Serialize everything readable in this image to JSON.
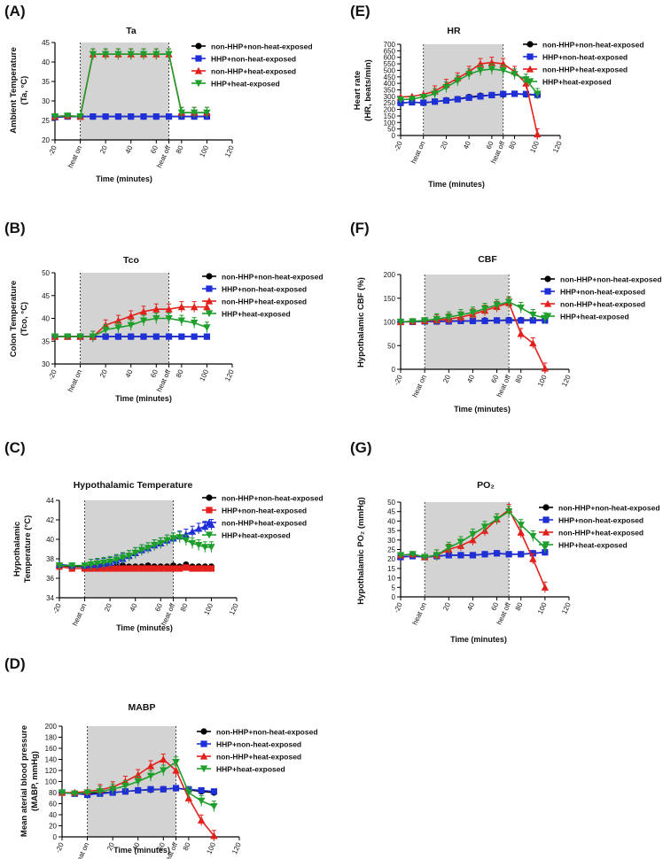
{
  "colors": {
    "black": "#000000",
    "blue": "#1f2fd8",
    "red": "#e3201b",
    "green": "#1e9e2a",
    "shade": "#d3d3d3"
  },
  "chart_data": [
    {
      "panel": "(A)",
      "type": "line",
      "title": "Ta",
      "ylabel_lines": [
        "Ambient Temperature",
        "(Ta, °C)"
      ],
      "xlabel": "Time (minutes)",
      "ylim": [
        20,
        45
      ],
      "yticks": [
        20,
        25,
        30,
        35,
        40,
        45
      ],
      "xlim": [
        -20,
        120
      ],
      "xticks": [
        "-20",
        "heat on",
        "20",
        "40",
        "60",
        "heat off",
        "80",
        "100",
        "120"
      ],
      "x": [
        -20,
        -10,
        0,
        10,
        20,
        30,
        40,
        50,
        60,
        70,
        80,
        90,
        100
      ],
      "series": [
        {
          "name": "non-HHP+non-heat-exposed",
          "marker": "circle",
          "color": "black",
          "values": [
            25.8,
            26,
            26,
            26,
            26,
            26,
            26,
            26,
            26,
            26,
            26,
            26,
            26
          ]
        },
        {
          "name": "HHP+non-heat-exposed",
          "marker": "square",
          "color": "blue",
          "values": [
            25.8,
            26,
            26,
            26,
            26,
            26,
            26,
            26,
            26,
            26,
            26,
            26,
            26
          ]
        },
        {
          "name": "non-HHP+heat-exposed",
          "marker": "triangle",
          "color": "red",
          "values": [
            26,
            26.2,
            26,
            42,
            42,
            42,
            42,
            42,
            42,
            42,
            27,
            27,
            27
          ]
        },
        {
          "name": "HHP+heat-exposed",
          "marker": "triangle-down",
          "color": "green",
          "values": [
            26,
            26.2,
            26,
            42,
            42,
            42,
            42,
            42,
            42,
            42,
            27,
            27,
            27
          ]
        }
      ],
      "annotations": []
    },
    {
      "panel": "(B)",
      "type": "line",
      "title": "Tco",
      "ylabel_lines": [
        "Colon Temperature",
        "(Tco, °C)"
      ],
      "xlabel": "Time (minutes)",
      "ylim": [
        30,
        50
      ],
      "yticks": [
        30,
        35,
        40,
        45,
        50
      ],
      "xlim": [
        -20,
        120
      ],
      "xticks": [
        "-20",
        "heat on",
        "20",
        "40",
        "60",
        "heat off",
        "80",
        "100",
        "120"
      ],
      "x": [
        -20,
        -10,
        0,
        10,
        20,
        30,
        40,
        50,
        60,
        70,
        80,
        90,
        100
      ],
      "series": [
        {
          "name": "non-HHP+non-heat-exposed",
          "marker": "circle",
          "color": "black",
          "values": [
            36,
            36,
            36,
            36,
            36,
            36,
            36,
            36,
            36,
            36,
            36,
            36,
            36
          ]
        },
        {
          "name": "HHP+non-heat-exposed",
          "marker": "square",
          "color": "blue",
          "values": [
            36,
            36,
            36,
            36,
            36,
            36,
            36,
            36,
            36,
            36,
            36,
            36,
            36
          ]
        },
        {
          "name": "non-HHP+heat-exposed",
          "marker": "triangle",
          "color": "red",
          "values": [
            36,
            36,
            36,
            36,
            38.5,
            39.5,
            40.5,
            41.5,
            42,
            42,
            42.5,
            42.5,
            42.5
          ]
        },
        {
          "name": "HHP+heat-exposed",
          "marker": "triangle-down",
          "color": "green",
          "values": [
            36,
            36,
            36,
            36,
            37.5,
            38,
            38.5,
            39.5,
            40,
            40,
            39.5,
            39,
            38
          ]
        }
      ],
      "annotations": []
    },
    {
      "panel": "(C)",
      "type": "line",
      "title": "Hypothalamic Temperature",
      "ylabel_lines": [
        "Hypothalamic",
        "Temperature (°C)"
      ],
      "xlabel": "Time (minutes)",
      "ylim": [
        34,
        44
      ],
      "yticks": [
        34,
        36,
        38,
        40,
        42,
        44
      ],
      "xlim": [
        -20,
        120
      ],
      "xticks": [
        "-20",
        "heat on",
        "20",
        "40",
        "60",
        "heat off",
        "80",
        "100",
        "120"
      ],
      "x": [
        -20,
        -10,
        0,
        5,
        10,
        15,
        20,
        25,
        30,
        35,
        40,
        45,
        50,
        55,
        60,
        65,
        70,
        75,
        80,
        85,
        90,
        95,
        100
      ],
      "series": [
        {
          "name": "non-HHP+non-heat-exposed",
          "marker": "circle",
          "color": "black",
          "values": [
            37.3,
            37.2,
            37.2,
            37.2,
            37.2,
            37.3,
            37.2,
            37.2,
            37.3,
            37.2,
            37.2,
            37.2,
            37.3,
            37.2,
            37.2,
            37.2,
            37.3,
            37.2,
            37.4,
            37.2,
            37.2,
            37.2,
            37.2
          ]
        },
        {
          "name": "HHP+non-heat-exposed",
          "marker": "square",
          "color": "red",
          "values": [
            37.2,
            37,
            37,
            37,
            37,
            37,
            37,
            37,
            37,
            37,
            37,
            37,
            37,
            37,
            37,
            37,
            37,
            37,
            37.1,
            37,
            37,
            37,
            37
          ]
        },
        {
          "name": "non-HHP+heat-exposed",
          "marker": "triangle",
          "color": "blue",
          "values": [
            37.4,
            37.3,
            37.3,
            37.4,
            37.4,
            37.5,
            37.6,
            37.8,
            38,
            38.3,
            38.6,
            38.9,
            39.1,
            39.4,
            39.6,
            39.9,
            40.1,
            40.3,
            40.5,
            40.8,
            41.1,
            41.3,
            41.5
          ]
        },
        {
          "name": "HHP+heat-exposed",
          "marker": "triangle-down",
          "color": "green",
          "values": [
            37.3,
            37.3,
            37.3,
            37.4,
            37.5,
            37.6,
            37.7,
            37.9,
            38.1,
            38.3,
            38.6,
            38.9,
            39.1,
            39.4,
            39.6,
            39.9,
            40.1,
            40.2,
            39.9,
            39.6,
            39.4,
            39.2,
            39.2
          ]
        }
      ],
      "annotations": []
    },
    {
      "panel": "(D)",
      "type": "line",
      "title": "MABP",
      "ylabel_lines": [
        "Mean aterial blood pressure",
        "(MABP, mmHg)"
      ],
      "xlabel": "Time (minutes)",
      "ylim": [
        0,
        200
      ],
      "yticks": [
        0,
        20,
        40,
        60,
        80,
        100,
        120,
        140,
        160,
        180,
        200
      ],
      "xlim": [
        -20,
        120
      ],
      "xticks": [
        "-20",
        "heat on",
        "20",
        "40",
        "60",
        "heat off",
        "80",
        "100",
        "120"
      ],
      "x": [
        -20,
        -10,
        0,
        10,
        20,
        30,
        40,
        50,
        60,
        70,
        80,
        90,
        100
      ],
      "series": [
        {
          "name": "non-HHP+non-heat-exposed",
          "marker": "circle",
          "color": "black",
          "values": [
            80,
            78,
            78,
            80,
            80,
            82,
            84,
            85,
            86,
            88,
            85,
            82,
            80
          ]
        },
        {
          "name": "HHP+non-heat-exposed",
          "marker": "square",
          "color": "blue",
          "values": [
            80,
            78,
            76,
            78,
            80,
            82,
            84,
            86,
            86,
            88,
            86,
            84,
            82
          ]
        },
        {
          "name": "non-HHP+heat-exposed",
          "marker": "triangle",
          "color": "red",
          "values": [
            80,
            80,
            82,
            85,
            90,
            100,
            112,
            128,
            140,
            120,
            70,
            30,
            2
          ]
        },
        {
          "name": "HHP+heat-exposed",
          "marker": "triangle-down",
          "color": "green",
          "values": [
            80,
            78,
            80,
            82,
            86,
            92,
            100,
            110,
            120,
            135,
            80,
            65,
            55
          ]
        }
      ],
      "annotations": []
    },
    {
      "panel": "(E)",
      "type": "line",
      "title": "HR",
      "ylabel_lines": [
        "Heart rate",
        "(HR, beats/min)"
      ],
      "xlabel": "Time (minutes)",
      "ylim": [
        0,
        700
      ],
      "yticks": [
        0,
        50,
        100,
        150,
        200,
        250,
        300,
        350,
        400,
        450,
        500,
        550,
        600,
        650,
        700
      ],
      "xlim": [
        -20,
        120
      ],
      "xticks": [
        "-20",
        "heat on",
        "20",
        "40",
        "60",
        "heat off",
        "80",
        "100",
        "120"
      ],
      "x": [
        -20,
        -10,
        0,
        10,
        20,
        30,
        40,
        50,
        60,
        70,
        80,
        90,
        100
      ],
      "series": [
        {
          "name": "non-HHP+non-heat-exposed",
          "marker": "circle",
          "color": "black",
          "values": [
            250,
            255,
            250,
            260,
            270,
            280,
            295,
            305,
            310,
            315,
            320,
            315,
            310
          ]
        },
        {
          "name": "HHP+non-heat-exposed",
          "marker": "square",
          "color": "blue",
          "values": [
            250,
            255,
            252,
            260,
            268,
            278,
            290,
            300,
            310,
            318,
            320,
            318,
            312
          ]
        },
        {
          "name": "non-HHP+heat-exposed",
          "marker": "triangle",
          "color": "red",
          "values": [
            295,
            300,
            315,
            340,
            390,
            440,
            490,
            550,
            560,
            550,
            490,
            400,
            10
          ]
        },
        {
          "name": "HHP+heat-exposed",
          "marker": "triangle-down",
          "color": "green",
          "values": [
            275,
            280,
            295,
            320,
            370,
            420,
            470,
            500,
            510,
            500,
            470,
            430,
            320
          ]
        }
      ],
      "annotations": []
    },
    {
      "panel": "(F)",
      "type": "line",
      "title": "CBF",
      "ylabel_lines": [
        "Hypothalamic CBF (%)"
      ],
      "xlabel": "Time (minutes)",
      "ylim": [
        0,
        200
      ],
      "yticks": [
        0,
        50,
        100,
        150,
        200
      ],
      "xlim": [
        -20,
        120
      ],
      "xticks": [
        "-20",
        "heat on",
        "20",
        "40",
        "60",
        "heat off",
        "80",
        "100",
        "120"
      ],
      "x": [
        -20,
        -10,
        0,
        10,
        20,
        30,
        40,
        50,
        60,
        70,
        80,
        90,
        100
      ],
      "series": [
        {
          "name": "non-HHP+non-heat-exposed",
          "marker": "circle",
          "color": "black",
          "values": [
            100,
            101,
            101,
            101,
            102,
            102,
            102,
            103,
            103,
            104,
            104,
            104,
            104
          ]
        },
        {
          "name": "HHP+non-heat-exposed",
          "marker": "square",
          "color": "blue",
          "values": [
            100,
            100,
            101,
            101,
            101,
            102,
            102,
            102,
            103,
            103,
            103,
            103,
            103
          ]
        },
        {
          "name": "non-HHP+heat-exposed",
          "marker": "triangle",
          "color": "red",
          "values": [
            100,
            101,
            102,
            104,
            106,
            110,
            116,
            124,
            132,
            140,
            75,
            55,
            2
          ]
        },
        {
          "name": "HHP+heat-exposed",
          "marker": "triangle-down",
          "color": "green",
          "values": [
            100,
            101,
            103,
            106,
            110,
            115,
            120,
            128,
            136,
            142,
            130,
            115,
            108
          ]
        }
      ],
      "annotations": []
    },
    {
      "panel": "(G)",
      "type": "line",
      "title": "PO₂",
      "ylabel_lines": [
        "Hypothalamic PO₂ (mmHg)"
      ],
      "xlabel": "Time (minutes)",
      "ylim": [
        0,
        50
      ],
      "yticks": [
        0,
        5,
        10,
        15,
        20,
        25,
        30,
        35,
        40,
        45,
        50
      ],
      "xlim": [
        -20,
        120
      ],
      "xticks": [
        "-20",
        "heat on",
        "20",
        "40",
        "60",
        "heat off",
        "80",
        "100",
        "120"
      ],
      "x": [
        -20,
        -10,
        0,
        10,
        20,
        30,
        40,
        50,
        60,
        70,
        80,
        90,
        100
      ],
      "series": [
        {
          "name": "non-HHP+non-heat-exposed",
          "marker": "circle",
          "color": "black",
          "values": [
            21,
            21.5,
            21,
            21.5,
            22,
            22,
            22,
            22.5,
            23,
            22.5,
            22.5,
            23,
            23.5
          ]
        },
        {
          "name": "HHP+non-heat-exposed",
          "marker": "square",
          "color": "blue",
          "values": [
            21,
            21.5,
            21,
            21.5,
            22,
            22,
            22,
            22.5,
            23,
            22.5,
            22.5,
            23,
            23.5
          ]
        },
        {
          "name": "non-HHP+heat-exposed",
          "marker": "triangle",
          "color": "red",
          "values": [
            22,
            22.5,
            21,
            22,
            25,
            27,
            30,
            35,
            41,
            46,
            34,
            20,
            5
          ]
        },
        {
          "name": "HHP+heat-exposed",
          "marker": "triangle-down",
          "color": "green",
          "values": [
            22,
            22.5,
            21,
            22,
            26,
            29,
            33,
            37,
            41,
            45,
            38,
            32,
            26
          ]
        }
      ],
      "annotations": []
    }
  ]
}
